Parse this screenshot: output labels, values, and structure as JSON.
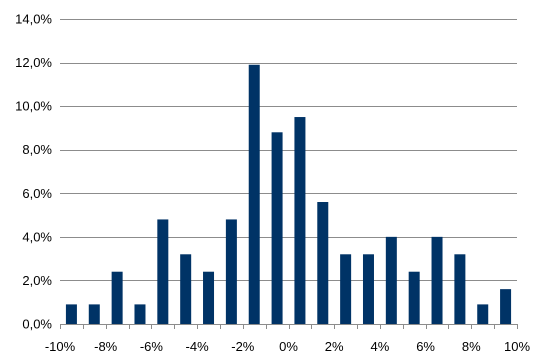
{
  "chart_data": {
    "type": "bar",
    "title": "",
    "xlabel": "",
    "ylabel": "",
    "categories": [
      "-9%",
      "-8%",
      "-7%",
      "-6%",
      "-5%",
      "-4%",
      "-3%",
      "-2%",
      "-1%",
      "0%",
      "1%",
      "2%",
      "3%",
      "4%",
      "5%",
      "6%",
      "7%",
      "8%",
      "9%",
      "10%"
    ],
    "values": [
      0.9,
      0.9,
      2.4,
      0.9,
      4.8,
      3.2,
      2.4,
      4.8,
      11.9,
      8.8,
      9.5,
      5.6,
      3.2,
      3.2,
      4.0,
      2.4,
      4.0,
      3.2,
      0.9,
      1.6
    ],
    "ylim": [
      0,
      14
    ],
    "y_ticks": [
      0,
      2,
      4,
      6,
      8,
      10,
      12,
      14
    ],
    "y_tick_labels": [
      "0,0%",
      "2,0%",
      "4,0%",
      "6,0%",
      "8,0%",
      "10,0%",
      "12,0%",
      "14,0%"
    ],
    "x_tick_labels": [
      "-10%",
      "-8%",
      "-6%",
      "-4%",
      "-2%",
      "0%",
      "2%",
      "4%",
      "6%",
      "8%",
      "10%"
    ],
    "grid": true,
    "legend": "none",
    "colors": {
      "bar": "#003366",
      "grid": "#8c8c8c",
      "axis": "#8c8c8c"
    }
  }
}
